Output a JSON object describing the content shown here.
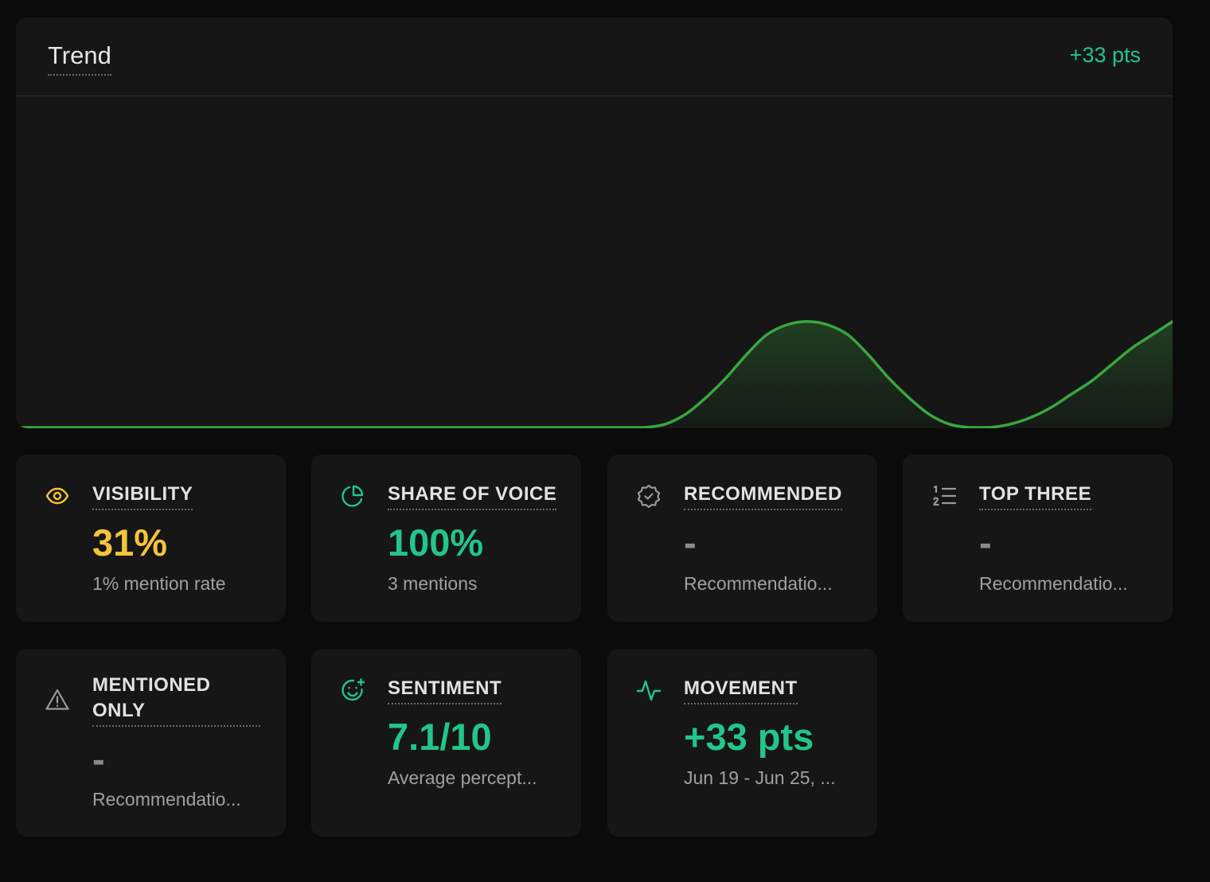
{
  "trend": {
    "title": "Trend",
    "delta": "+33 pts",
    "line_color": "#3aa63f"
  },
  "chart_data": {
    "type": "area",
    "title": "Trend",
    "points": [
      0,
      0,
      0,
      0,
      0,
      0,
      0,
      0,
      0,
      0,
      0,
      0,
      0,
      0,
      0,
      0,
      0,
      0,
      0,
      0,
      0,
      0,
      0,
      0,
      0,
      0,
      0,
      0,
      0,
      0,
      0,
      0,
      1,
      4,
      9,
      15,
      22,
      28,
      31,
      32,
      31,
      28,
      22,
      15,
      9,
      4,
      1,
      0,
      0,
      1,
      3,
      6,
      10,
      14,
      19,
      24,
      28,
      32
    ],
    "ylim": [
      0,
      100
    ],
    "grid": false
  },
  "stats": [
    {
      "label": "VISIBILITY",
      "value": "31%",
      "sub": "1% mention rate",
      "icon": "eye-icon",
      "color": "#f5c33b"
    },
    {
      "label": "SHARE OF VOICE",
      "value": "100%",
      "sub": "3 mentions",
      "icon": "pie-chart-icon",
      "color": "#22c58a"
    },
    {
      "label": "RECOMMENDED",
      "value": "-",
      "sub": "Recommendatio...",
      "icon": "badge-check-icon",
      "color": "#8a8a8a"
    },
    {
      "label": "TOP THREE",
      "value": "-",
      "sub": "Recommendatio...",
      "icon": "ordered-list-icon",
      "color": "#8a8a8a"
    },
    {
      "label": "MENTIONED ONLY",
      "label_line1": "MENTIONED",
      "label_line2": "ONLY",
      "value": "-",
      "sub": "Recommendatio...",
      "icon": "warning-icon",
      "color": "#8a8a8a"
    },
    {
      "label": "SENTIMENT",
      "value": "7.1/10",
      "sub": "Average percept...",
      "icon": "smile-plus-icon",
      "color": "#22c58a"
    },
    {
      "label": "MOVEMENT",
      "value": "+33 pts",
      "sub": "Jun 19 - Jun 25, ...",
      "icon": "activity-icon",
      "color": "#22c58a"
    }
  ]
}
